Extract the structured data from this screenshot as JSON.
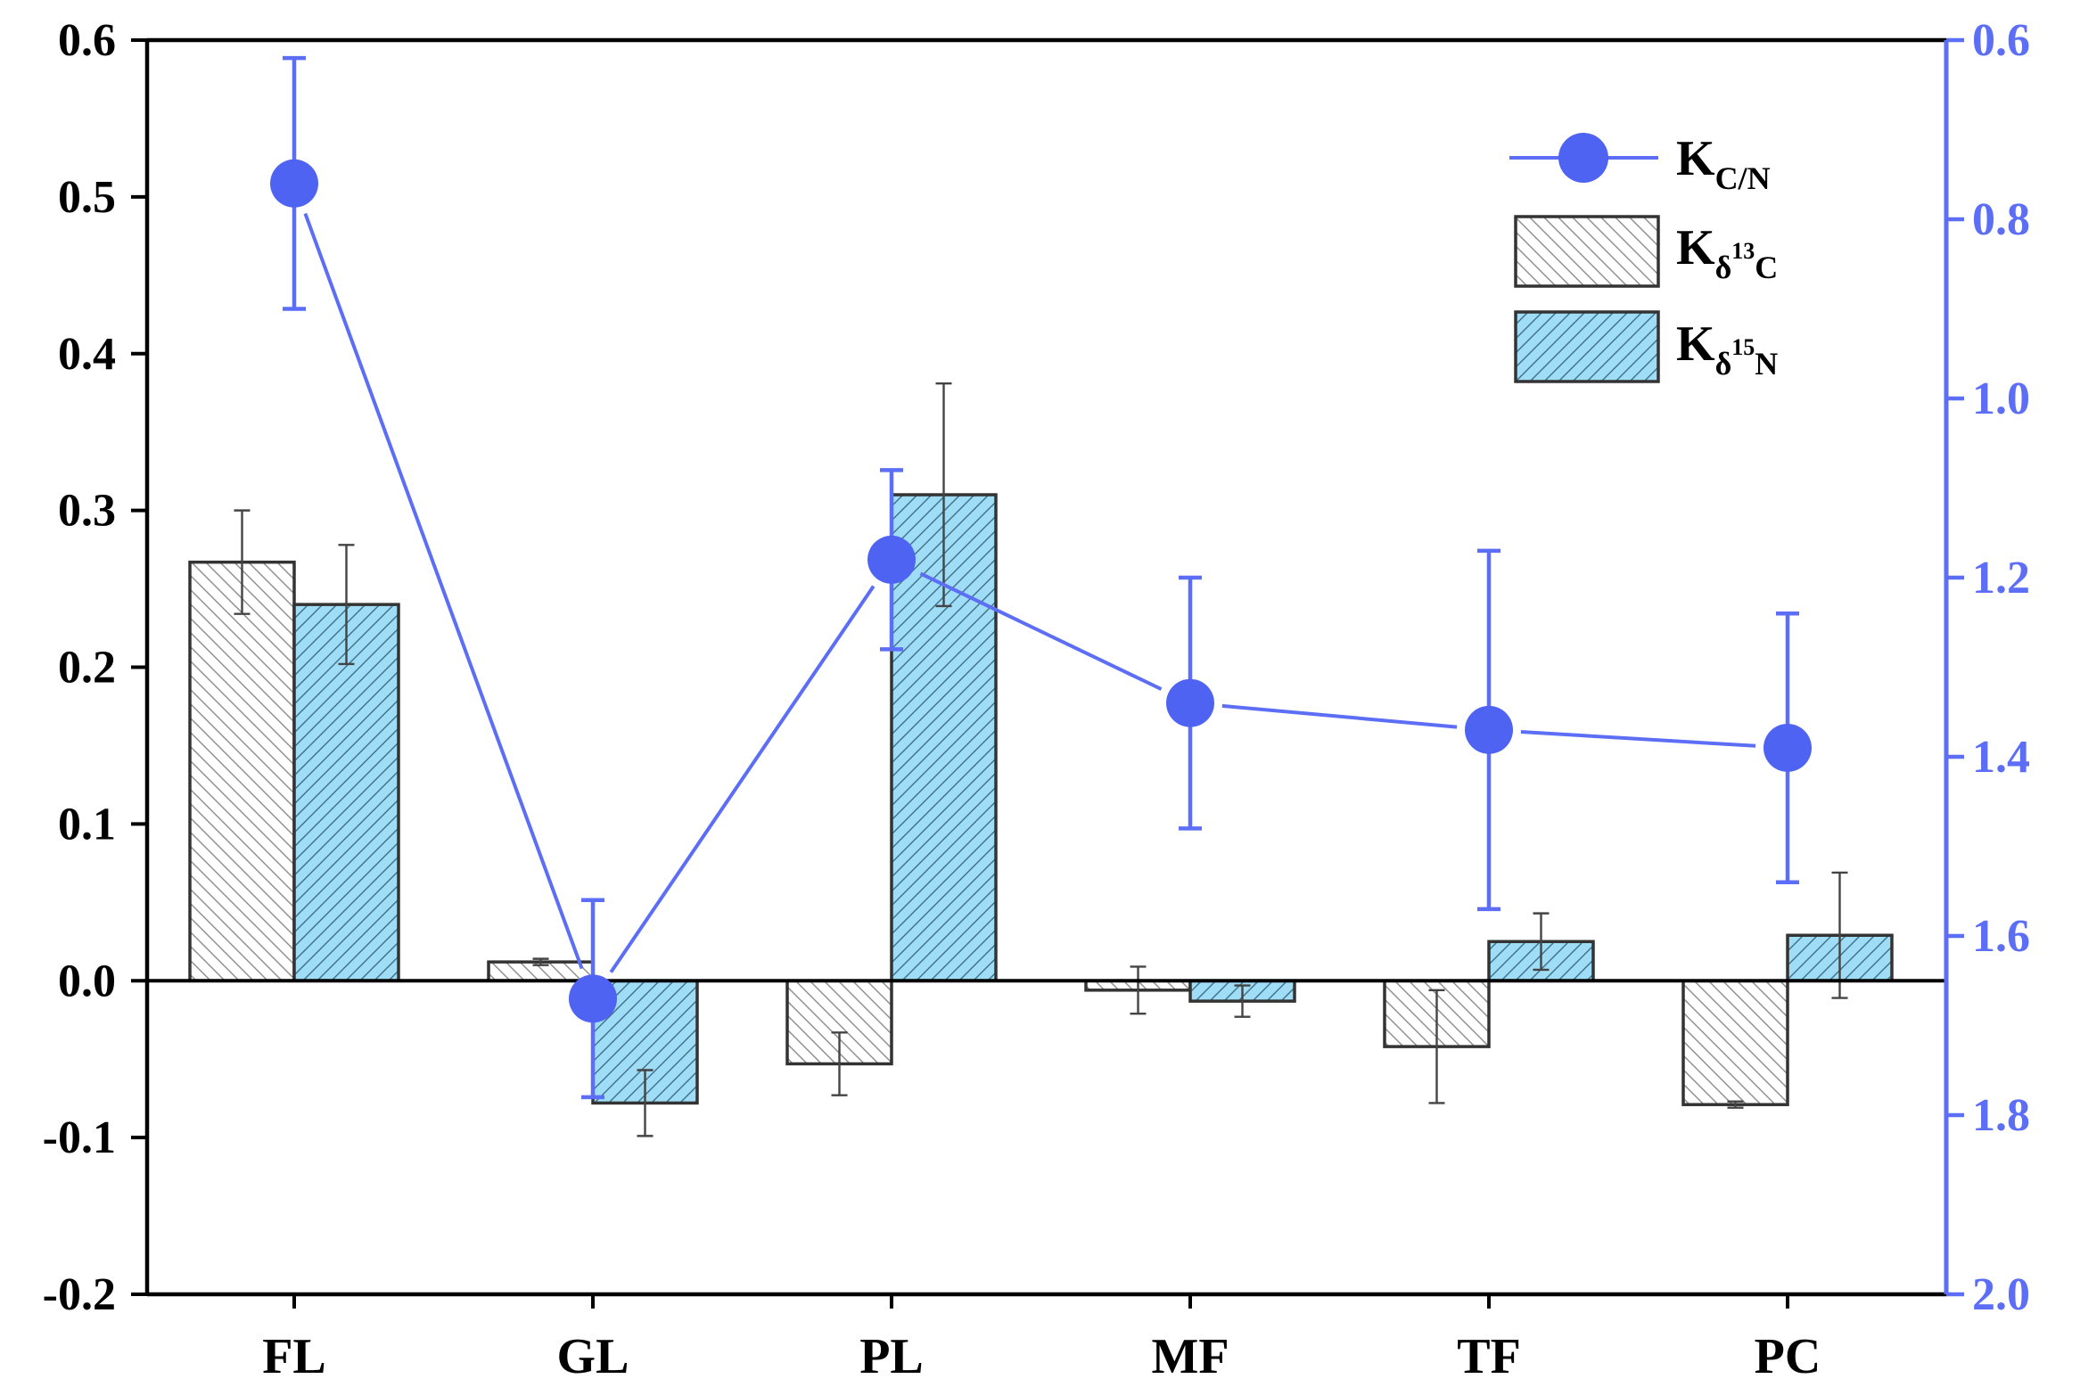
{
  "colors": {
    "axis": "#000000",
    "right_axis": "#5b6ef5",
    "line": "#5b6ef5",
    "marker": "#4f63f2",
    "bar_c13_fill": "#ffffff",
    "bar_c13_hatch": "#8a8a8a",
    "bar_n15_fill": "#9fdcf5",
    "bar_n15_hatch": "#3f6f86",
    "bar_edge": "#333333",
    "errorbar": "#444444"
  },
  "chart_data": {
    "type": "bar",
    "categories": [
      "FL",
      "GL",
      "PL",
      "MF",
      "TF",
      "PC"
    ],
    "ylim": [
      -0.2,
      0.6
    ],
    "yticks": [
      "-0.2",
      "-0.1",
      "0.0",
      "0.1",
      "0.2",
      "0.3",
      "0.4",
      "0.5",
      "0.6"
    ],
    "y2lim": [
      0.6,
      2.0
    ],
    "y2_inverted": true,
    "y2ticks": [
      "0.6",
      "0.8",
      "1.0",
      "1.2",
      "1.4",
      "1.6",
      "1.8",
      "2.0"
    ],
    "legend_position": "top-right",
    "grid": false,
    "series": [
      {
        "legend": {
          "main": "K",
          "sub": "δ",
          "sup": "13",
          "sub2": "C"
        },
        "kind": "bar",
        "axis": "left",
        "values": [
          0.267,
          0.012,
          -0.053,
          -0.006,
          -0.042,
          -0.079
        ],
        "errors": [
          0.033,
          0.002,
          0.02,
          0.015,
          0.036,
          0.002
        ]
      },
      {
        "legend": {
          "main": "K",
          "sub": "δ",
          "sup": "15",
          "sub2": "N"
        },
        "kind": "bar",
        "axis": "left",
        "values": [
          0.24,
          -0.078,
          0.31,
          -0.013,
          0.025,
          0.029
        ],
        "errors": [
          0.038,
          0.021,
          0.071,
          0.01,
          0.018,
          0.04
        ]
      },
      {
        "legend": {
          "main": "K",
          "sub": "C/N"
        },
        "kind": "line",
        "axis": "right",
        "values": [
          0.76,
          1.67,
          1.18,
          1.34,
          1.37,
          1.39
        ],
        "errors": [
          0.14,
          0.11,
          0.1,
          0.14,
          0.2,
          0.15
        ]
      }
    ]
  }
}
